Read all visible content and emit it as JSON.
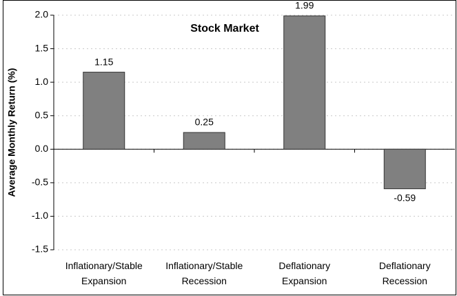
{
  "chart_data": {
    "type": "bar",
    "title": "Stock Market",
    "y_label": "Average Monthly Return (%)",
    "categories": [
      [
        "Inflationary/Stable",
        "Expansion"
      ],
      [
        "Inflationary/Stable",
        "Recession"
      ],
      [
        "Deflationary",
        "Expansion"
      ],
      [
        "Deflationary",
        "Recession"
      ]
    ],
    "values": [
      1.15,
      0.25,
      1.99,
      -0.59
    ],
    "color": "#808080",
    "ylim": [
      -1.5,
      2.0
    ],
    "yticks": [
      -1.5,
      {
        "value": -1.0,
        "label": "-1.0"
      },
      -0.5,
      {
        "value": 0.0,
        "label": "0.0"
      },
      0.5,
      {
        "value": 1.0,
        "label": "1.0"
      },
      1.5,
      {
        "value": 2.0,
        "label": "2.0"
      }
    ],
    "grid": true
  }
}
